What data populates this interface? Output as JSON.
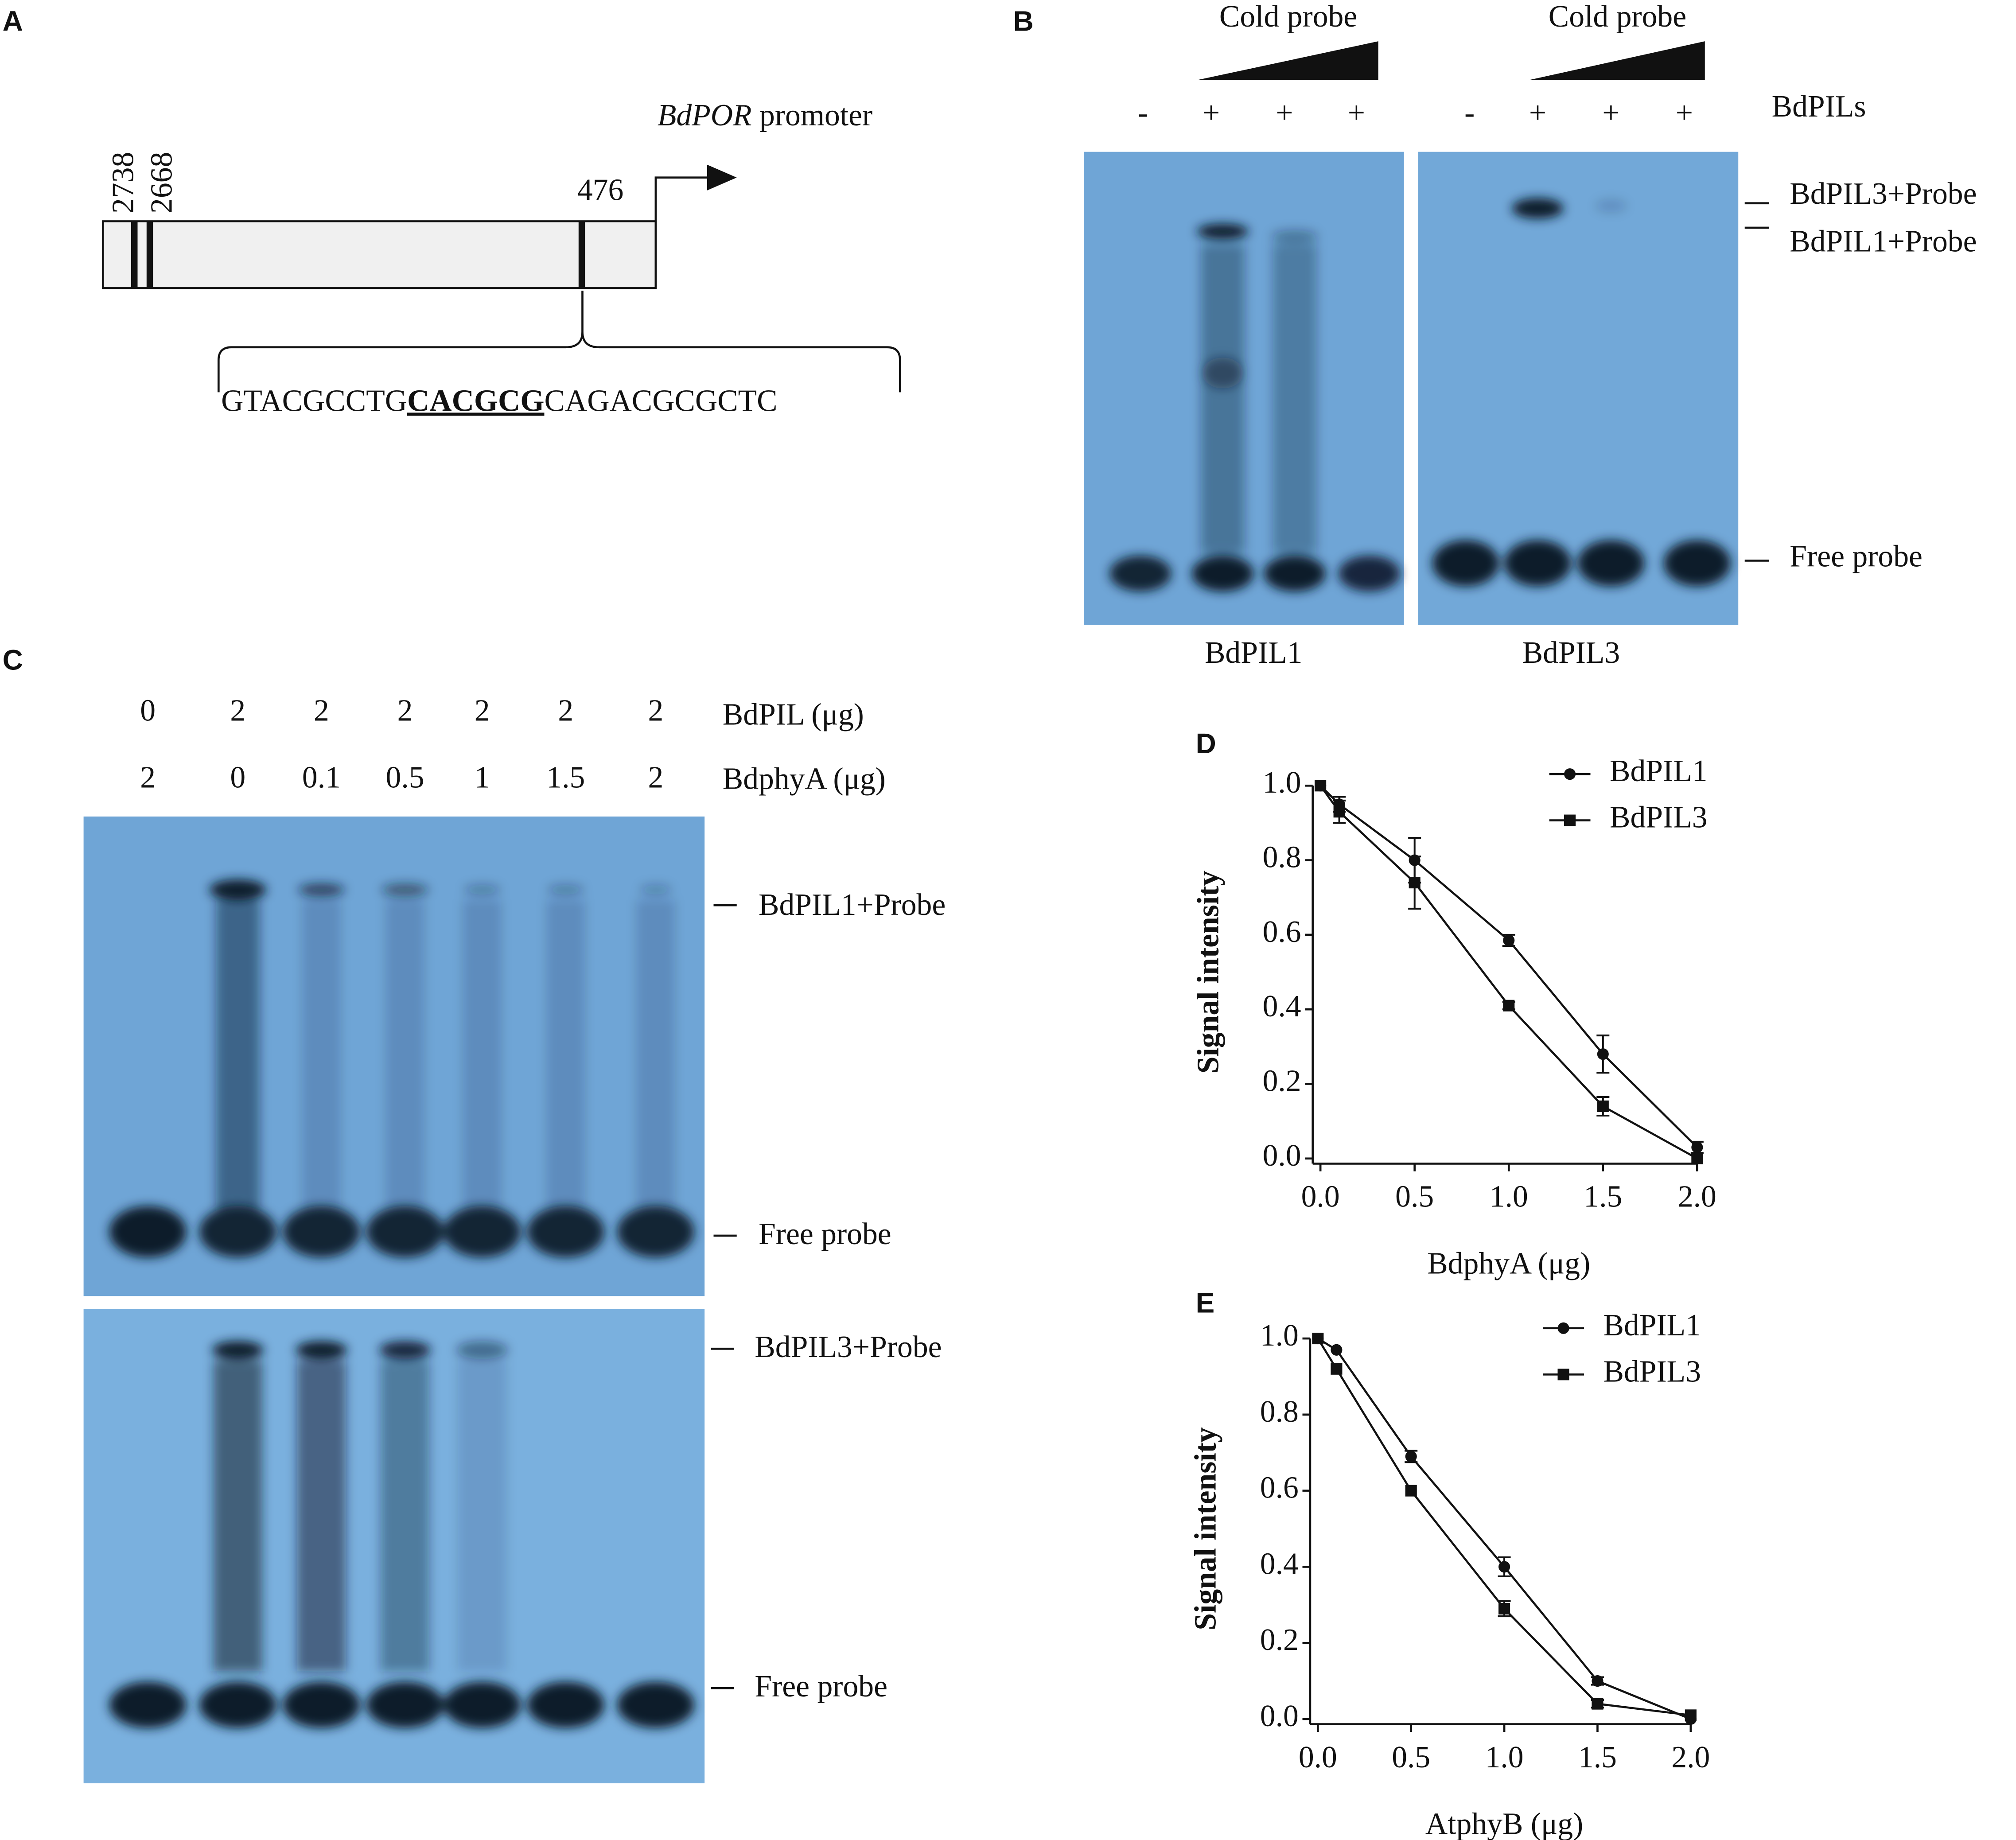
{
  "panel_a": {
    "label": "A",
    "gene": "BdPOR",
    "gene_suffix": "promoter",
    "positions": [
      2738,
      2668,
      476
    ],
    "sequence": {
      "before": "GTACGCCTG",
      "motif": "CACGCG",
      "after": "CAGACGCGCTC"
    }
  },
  "panel_b": {
    "label": "B",
    "cold_probe": [
      "Cold probe",
      "Cold probe"
    ],
    "lanes_left": [
      "-",
      "+",
      "+",
      "+"
    ],
    "lanes_right": [
      "-",
      "+",
      "+",
      "+"
    ],
    "row_label": "BdPILs",
    "band_labels": [
      "BdPIL3+Probe",
      "BdPIL1+Probe",
      "Free probe"
    ],
    "gel_labels": [
      "BdPIL1",
      "BdPIL3"
    ]
  },
  "panel_c": {
    "label": "C",
    "bdpil_amounts": [
      0,
      2,
      2,
      2,
      2,
      2,
      2
    ],
    "bdpil_label": "BdPIL (μg)",
    "bdphya_amounts": [
      2,
      0,
      0.1,
      0.5,
      1,
      1.5,
      2
    ],
    "bdphya_label": "BdphyA (μg)",
    "top_band_labels": [
      "BdPIL1+Probe",
      "Free probe"
    ],
    "bottom_band_labels": [
      "BdPIL3+Probe",
      "Free probe"
    ]
  },
  "chart_data": [
    {
      "type": "line",
      "label": "D",
      "xlabel": "BdphyA (μg)",
      "ylabel": "Signal intensity",
      "x": [
        0,
        0.1,
        0.5,
        1,
        1.5,
        2
      ],
      "xlim": [
        0,
        2
      ],
      "ylim": [
        0,
        1
      ],
      "xticks": [
        {
          "value": 0,
          "label": "0.0"
        },
        0.5,
        {
          "value": 1,
          "label": "1.0"
        },
        1.5,
        {
          "value": 2,
          "label": "2.0"
        }
      ],
      "yticks": [
        {
          "value": 0,
          "label": "0.0"
        },
        0.2,
        0.4,
        0.6,
        0.8,
        {
          "value": 1,
          "label": "1.0"
        }
      ],
      "legend": "top-right",
      "series": [
        {
          "name": "BdPIL1",
          "color": "#111111",
          "marker": "circle",
          "values": [
            1.0,
            0.95,
            0.8,
            0.585,
            0.28,
            0.03
          ],
          "errors": [
            0,
            0.02,
            0.06,
            0.015,
            0.05,
            0.015
          ]
        },
        {
          "name": "BdPIL3",
          "color": "#111111",
          "marker": "square",
          "values": [
            1.0,
            0.93,
            0.74,
            0.41,
            0.14,
            0.0
          ],
          "errors": [
            0,
            0.03,
            0.07,
            0.01,
            0.025,
            0
          ]
        }
      ]
    },
    {
      "type": "line",
      "label": "E",
      "xlabel": "AtphyB (μg)",
      "ylabel": "Signal intensity",
      "x": [
        0,
        0.1,
        0.5,
        1,
        1.5,
        2
      ],
      "xlim": [
        0,
        2
      ],
      "ylim": [
        0,
        1
      ],
      "xticks": [
        {
          "value": 0,
          "label": "0.0"
        },
        0.5,
        {
          "value": 1,
          "label": "1.0"
        },
        1.5,
        {
          "value": 2,
          "label": "2.0"
        }
      ],
      "yticks": [
        {
          "value": 0,
          "label": "0.0"
        },
        0.2,
        0.4,
        0.6,
        0.8,
        {
          "value": 1,
          "label": "1.0"
        }
      ],
      "legend": "top-right",
      "series": [
        {
          "name": "BdPIL1",
          "color": "#111111",
          "marker": "circle",
          "values": [
            1.0,
            0.97,
            0.69,
            0.4,
            0.1,
            0.0
          ],
          "errors": [
            0,
            0,
            0.015,
            0.025,
            0.01,
            0
          ]
        },
        {
          "name": "BdPIL3",
          "color": "#111111",
          "marker": "square",
          "values": [
            1.0,
            0.92,
            0.6,
            0.29,
            0.04,
            0.01
          ],
          "errors": [
            0,
            0,
            0,
            0.02,
            0.01,
            0
          ]
        }
      ]
    }
  ]
}
